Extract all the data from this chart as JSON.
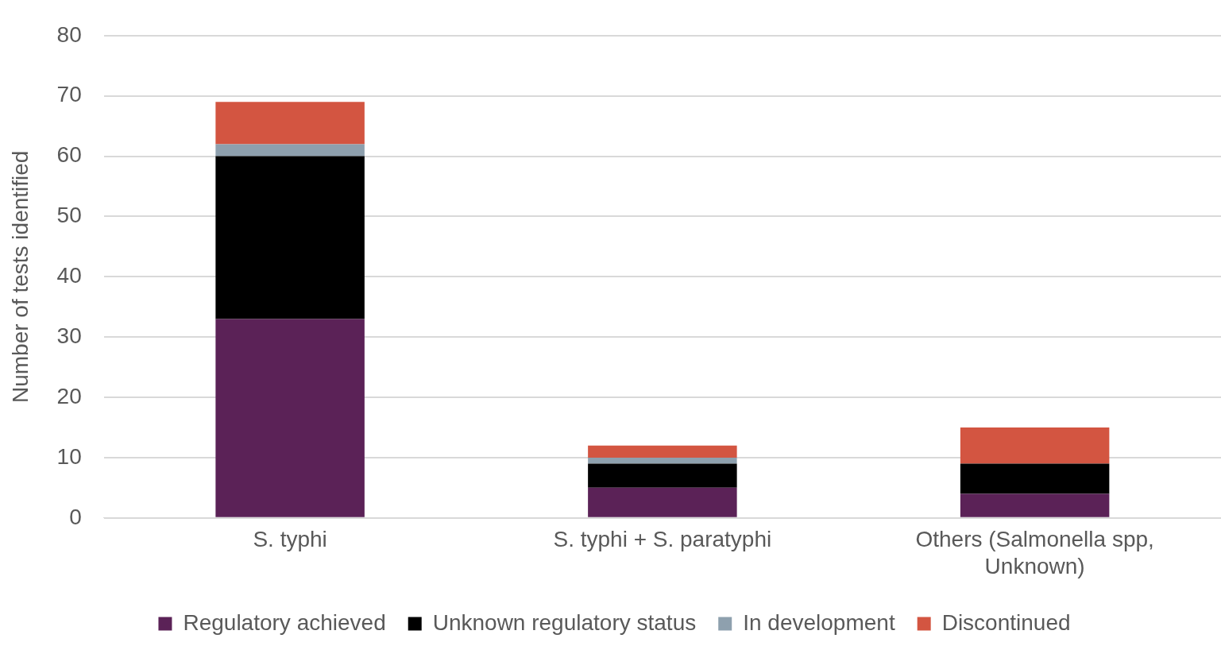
{
  "chart_data": {
    "type": "bar",
    "stacked": true,
    "ylabel": "Number of tests identified",
    "categories": [
      "S. typhi",
      "S. typhi + S. paratyphi",
      "Others (Salmonella spp, Unknown)"
    ],
    "series": [
      {
        "name": "Regulatory achieved",
        "color": "#5b2257",
        "values": [
          33,
          5,
          4
        ]
      },
      {
        "name": "Unknown regulatory status",
        "color": "#000000",
        "values": [
          27,
          4,
          5
        ]
      },
      {
        "name": "In development",
        "color": "#8ea0ae",
        "values": [
          2,
          1,
          0
        ]
      },
      {
        "name": "Discontinued",
        "color": "#d35541",
        "values": [
          7,
          2,
          6
        ]
      }
    ],
    "ylim": [
      0,
      80
    ],
    "yticks": [
      0,
      10,
      20,
      30,
      40,
      50,
      60,
      70,
      80
    ],
    "grid": "y",
    "legend": "bottom"
  }
}
